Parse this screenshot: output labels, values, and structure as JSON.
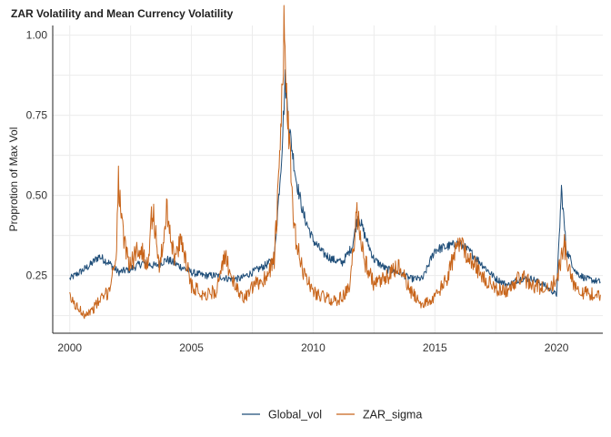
{
  "chart_data": {
    "type": "line",
    "title": "ZAR Volatility and Mean Currency Volatility",
    "xlabel": "",
    "ylabel": "Proprotion of Max Vol",
    "xlim": [
      1999.3,
      2021.9
    ],
    "ylim": [
      0.07,
      1.03
    ],
    "x_ticks": [
      2000,
      2005,
      2010,
      2015,
      2020
    ],
    "y_ticks": [
      0.25,
      0.5,
      0.75,
      1.0
    ],
    "y_tick_labels": [
      "0.25",
      "0.50",
      "0.75",
      "1.00"
    ],
    "grid": true,
    "legend_position": "bottom",
    "series": [
      {
        "name": "Global_vol",
        "color": "#1f4e79",
        "points": [
          [
            2000.0,
            0.24
          ],
          [
            2000.4,
            0.26
          ],
          [
            2000.8,
            0.28
          ],
          [
            2001.2,
            0.31
          ],
          [
            2001.6,
            0.29
          ],
          [
            2002.0,
            0.26
          ],
          [
            2002.5,
            0.27
          ],
          [
            2003.0,
            0.29
          ],
          [
            2003.5,
            0.28
          ],
          [
            2004.0,
            0.3
          ],
          [
            2004.5,
            0.28
          ],
          [
            2005.0,
            0.26
          ],
          [
            2005.5,
            0.25
          ],
          [
            2006.0,
            0.25
          ],
          [
            2006.5,
            0.24
          ],
          [
            2007.0,
            0.24
          ],
          [
            2007.5,
            0.26
          ],
          [
            2008.0,
            0.28
          ],
          [
            2008.4,
            0.3
          ],
          [
            2008.7,
            0.62
          ],
          [
            2008.85,
            0.86
          ],
          [
            2009.0,
            0.72
          ],
          [
            2009.3,
            0.55
          ],
          [
            2009.6,
            0.44
          ],
          [
            2010.0,
            0.36
          ],
          [
            2010.4,
            0.32
          ],
          [
            2010.8,
            0.3
          ],
          [
            2011.2,
            0.29
          ],
          [
            2011.6,
            0.34
          ],
          [
            2011.85,
            0.44
          ],
          [
            2012.1,
            0.38
          ],
          [
            2012.5,
            0.3
          ],
          [
            2013.0,
            0.27
          ],
          [
            2013.5,
            0.26
          ],
          [
            2014.0,
            0.24
          ],
          [
            2014.5,
            0.24
          ],
          [
            2015.0,
            0.33
          ],
          [
            2015.5,
            0.34
          ],
          [
            2016.0,
            0.35
          ],
          [
            2016.5,
            0.32
          ],
          [
            2017.0,
            0.28
          ],
          [
            2017.5,
            0.24
          ],
          [
            2018.0,
            0.22
          ],
          [
            2018.5,
            0.24
          ],
          [
            2019.0,
            0.24
          ],
          [
            2019.5,
            0.22
          ],
          [
            2020.0,
            0.19
          ],
          [
            2020.2,
            0.52
          ],
          [
            2020.4,
            0.33
          ],
          [
            2020.8,
            0.26
          ],
          [
            2021.2,
            0.24
          ],
          [
            2021.8,
            0.23
          ]
        ]
      },
      {
        "name": "ZAR_sigma",
        "color": "#c8651b",
        "points": [
          [
            2000.0,
            0.18
          ],
          [
            2000.3,
            0.15
          ],
          [
            2000.6,
            0.13
          ],
          [
            2000.9,
            0.14
          ],
          [
            2001.2,
            0.17
          ],
          [
            2001.6,
            0.2
          ],
          [
            2001.9,
            0.31
          ],
          [
            2002.0,
            0.54
          ],
          [
            2002.2,
            0.36
          ],
          [
            2002.5,
            0.28
          ],
          [
            2002.8,
            0.34
          ],
          [
            2003.2,
            0.29
          ],
          [
            2003.4,
            0.46
          ],
          [
            2003.7,
            0.27
          ],
          [
            2004.0,
            0.46
          ],
          [
            2004.3,
            0.3
          ],
          [
            2004.6,
            0.36
          ],
          [
            2005.0,
            0.22
          ],
          [
            2005.5,
            0.19
          ],
          [
            2006.0,
            0.2
          ],
          [
            2006.4,
            0.31
          ],
          [
            2006.8,
            0.21
          ],
          [
            2007.2,
            0.18
          ],
          [
            2007.6,
            0.22
          ],
          [
            2008.0,
            0.24
          ],
          [
            2008.4,
            0.3
          ],
          [
            2008.6,
            0.55
          ],
          [
            2008.8,
            1.0
          ],
          [
            2009.0,
            0.68
          ],
          [
            2009.2,
            0.4
          ],
          [
            2009.5,
            0.28
          ],
          [
            2010.0,
            0.2
          ],
          [
            2010.5,
            0.18
          ],
          [
            2011.0,
            0.17
          ],
          [
            2011.5,
            0.21
          ],
          [
            2011.8,
            0.45
          ],
          [
            2012.1,
            0.3
          ],
          [
            2012.5,
            0.22
          ],
          [
            2013.0,
            0.24
          ],
          [
            2013.5,
            0.28
          ],
          [
            2014.0,
            0.2
          ],
          [
            2014.5,
            0.16
          ],
          [
            2015.0,
            0.18
          ],
          [
            2015.5,
            0.24
          ],
          [
            2016.0,
            0.36
          ],
          [
            2016.5,
            0.3
          ],
          [
            2017.0,
            0.24
          ],
          [
            2017.5,
            0.21
          ],
          [
            2018.0,
            0.2
          ],
          [
            2018.5,
            0.25
          ],
          [
            2019.0,
            0.22
          ],
          [
            2019.5,
            0.21
          ],
          [
            2020.0,
            0.23
          ],
          [
            2020.3,
            0.35
          ],
          [
            2020.6,
            0.24
          ],
          [
            2021.0,
            0.2
          ],
          [
            2021.5,
            0.19
          ],
          [
            2021.8,
            0.19
          ]
        ]
      }
    ]
  }
}
